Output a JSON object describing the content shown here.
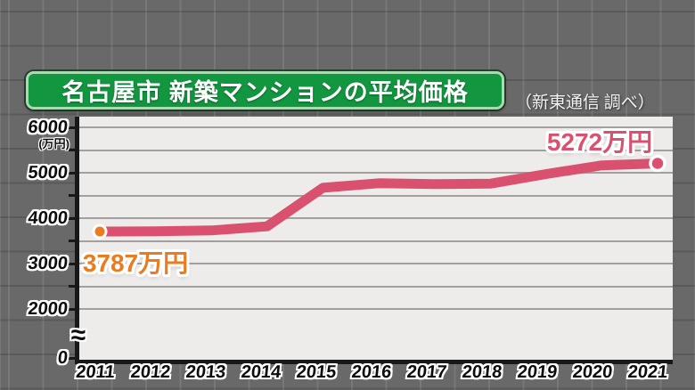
{
  "header": {
    "title": "名古屋市 新築マンションの平均価格",
    "source_credit": "（新東通信 調べ）"
  },
  "axes": {
    "y_unit": "(万円)",
    "y_labels": [
      "6000",
      "5000",
      "4000",
      "3000",
      "2000",
      "0"
    ],
    "axis_break_symbol": "≈",
    "x_labels": [
      "2011",
      "2012",
      "2013",
      "2014",
      "2015",
      "2016",
      "2017",
      "2018",
      "2019",
      "2020",
      "2021"
    ]
  },
  "callouts": {
    "first": "3787万円",
    "last": "5272万円"
  },
  "colors": {
    "background": "#696969",
    "title_bg": "#12963f",
    "title_border": "#a8dcb0",
    "plot_bg": "#edecea",
    "line": "#d9516e",
    "first_point": "#ea7b1e",
    "axis": "#181818"
  },
  "chart_data": {
    "type": "line",
    "title": "名古屋市 新築マンションの平均価格",
    "source": "新東通信 調べ",
    "x": [
      2011,
      2012,
      2013,
      2014,
      2015,
      2016,
      2017,
      2018,
      2019,
      2020,
      2021
    ],
    "series": [
      {
        "name": "新築マンション平均価格",
        "values": [
          3787,
          3790,
          3810,
          3900,
          4740,
          4840,
          4820,
          4830,
          5040,
          5230,
          5272
        ]
      }
    ],
    "ylabel": "万円",
    "ylim": [
      0,
      6000
    ],
    "y_axis_break": true,
    "gridline_interval": 500,
    "grid": true,
    "legend": false,
    "labeled_points": [
      {
        "x": 2011,
        "value": 3787,
        "label": "3787万円"
      },
      {
        "x": 2021,
        "value": 5272,
        "label": "5272万円"
      }
    ]
  }
}
